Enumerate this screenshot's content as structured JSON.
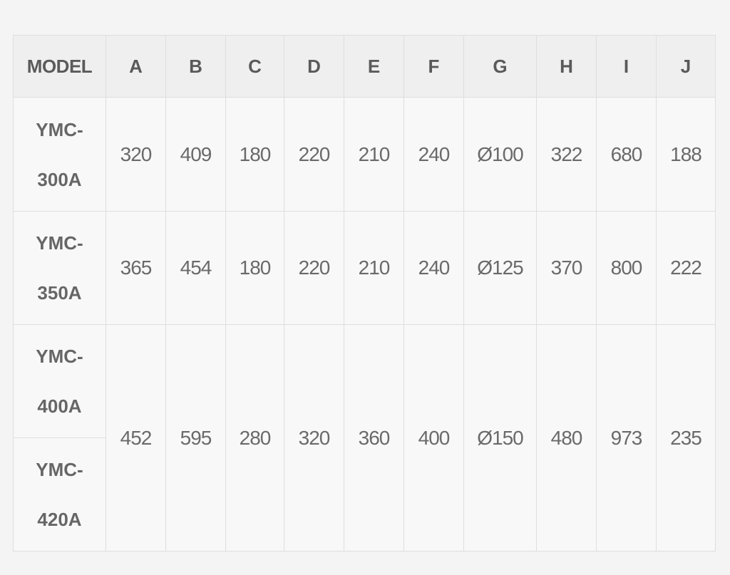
{
  "table": {
    "headers": [
      "MODEL",
      "A",
      "B",
      "C",
      "D",
      "E",
      "F",
      "G",
      "H",
      "I",
      "J"
    ],
    "rows": [
      {
        "model_line1": "YMC-",
        "model_line2": "300A",
        "values": [
          "320",
          "409",
          "180",
          "220",
          "210",
          "240",
          "Ø100",
          "322",
          "680",
          "188"
        ]
      },
      {
        "model_line1": "YMC-",
        "model_line2": "350A",
        "values": [
          "365",
          "454",
          "180",
          "220",
          "210",
          "240",
          "Ø125",
          "370",
          "800",
          "222"
        ]
      },
      {
        "models": [
          {
            "line1": "YMC-",
            "line2": "400A"
          },
          {
            "line1": "YMC-",
            "line2": "420A"
          }
        ],
        "values": [
          "452",
          "595",
          "280",
          "320",
          "360",
          "400",
          "Ø150",
          "480",
          "973",
          "235"
        ]
      }
    ]
  }
}
